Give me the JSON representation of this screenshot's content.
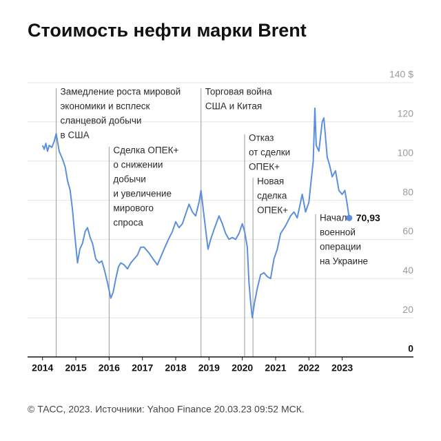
{
  "chart_data": {
    "type": "line",
    "title": "Стоимость нефти марки Brent",
    "source": "© ТАСС, 2023. Источники: Yahoo Finance 20.03.23 09:52 МСК.",
    "color": "#5b8fde",
    "xlim": [
      2013.55,
      2025.14
    ],
    "ylim": [
      0,
      140
    ],
    "xticks": [
      2014,
      2015,
      2016,
      2017,
      2018,
      2019,
      2020,
      2021,
      2022,
      2023
    ],
    "yticks": [
      0,
      20,
      40,
      60,
      80,
      100,
      120,
      {
        "value": 140,
        "label": "140 $"
      }
    ],
    "grid": true,
    "x": [
      2014.0,
      2014.05,
      2014.1,
      2014.15,
      2014.2,
      2014.28,
      2014.35,
      2014.41,
      2014.5,
      2014.6,
      2014.68,
      2014.75,
      2014.83,
      2014.9,
      2014.97,
      2015.05,
      2015.12,
      2015.2,
      2015.28,
      2015.35,
      2015.43,
      2015.5,
      2015.6,
      2015.7,
      2015.78,
      2015.85,
      2015.95,
      2016.05,
      2016.12,
      2016.2,
      2016.28,
      2016.35,
      2016.45,
      2016.55,
      2016.65,
      2016.75,
      2016.85,
      2016.95,
      2017.05,
      2017.2,
      2017.32,
      2017.45,
      2017.55,
      2017.65,
      2017.78,
      2017.9,
      2018.0,
      2018.1,
      2018.2,
      2018.3,
      2018.4,
      2018.5,
      2018.6,
      2018.7,
      2018.76,
      2018.85,
      2018.97,
      2019.05,
      2019.15,
      2019.3,
      2019.4,
      2019.5,
      2019.6,
      2019.7,
      2019.8,
      2019.9,
      2020.0,
      2020.07,
      2020.15,
      2020.2,
      2020.25,
      2020.3,
      2020.36,
      2020.45,
      2020.55,
      2020.65,
      2020.75,
      2020.85,
      2020.95,
      2021.05,
      2021.15,
      2021.3,
      2021.45,
      2021.55,
      2021.65,
      2021.8,
      2021.9,
      2022.0,
      2022.08,
      2022.13,
      2022.18,
      2022.22,
      2022.3,
      2022.4,
      2022.45,
      2022.55,
      2022.62,
      2022.7,
      2022.8,
      2022.9,
      2023.0,
      2023.08,
      2023.15,
      2023.21
    ],
    "values": [
      108,
      106,
      109,
      105,
      108,
      107,
      110,
      114,
      105,
      101,
      97,
      90,
      85,
      75,
      62,
      48,
      55,
      58,
      64,
      66,
      61,
      58,
      50,
      48,
      49,
      45,
      38,
      30,
      33,
      40,
      46,
      48,
      47,
      45,
      48,
      50,
      52,
      56,
      56,
      53,
      50,
      47,
      51,
      55,
      60,
      64,
      69,
      66,
      68,
      73,
      78,
      74,
      72,
      79,
      85,
      72,
      55,
      60,
      65,
      72,
      68,
      63,
      60,
      61,
      60,
      63,
      68,
      64,
      56,
      38,
      28,
      20,
      27,
      35,
      42,
      43,
      41,
      40,
      50,
      55,
      63,
      67,
      72,
      74,
      71,
      83,
      74,
      79,
      92,
      100,
      127,
      108,
      105,
      120,
      122,
      102,
      98,
      92,
      95,
      85,
      83,
      85,
      78,
      70.93
    ],
    "value_labels": [
      null,
      null,
      null,
      null,
      null,
      null,
      null,
      null,
      null,
      null,
      null,
      null,
      null,
      null,
      null,
      null,
      null,
      null,
      null,
      null,
      null,
      null,
      null,
      null,
      null,
      null,
      null,
      null,
      null,
      null,
      null,
      null,
      null,
      null,
      null,
      null,
      null,
      null,
      null,
      null,
      null,
      null,
      null,
      null,
      null,
      null,
      null,
      null,
      null,
      null,
      null,
      null,
      null,
      null,
      null,
      null,
      null,
      null,
      null,
      null,
      null,
      null,
      null,
      null,
      null,
      null,
      null,
      null,
      null,
      null,
      null,
      null,
      null,
      null,
      null,
      null,
      null,
      null,
      null,
      null,
      null,
      null,
      null,
      null,
      null,
      null,
      null,
      null,
      null,
      null,
      null,
      null,
      null,
      null,
      null,
      null,
      null,
      null,
      null,
      null,
      null,
      null,
      null,
      "70,93"
    ],
    "annotations": [
      {
        "x": 2014.41,
        "lines": [
          "Замедление роста мировой",
          "экономики и всплеск",
          "сланцевой добычи",
          "в США"
        ]
      },
      {
        "x": 2016.0,
        "lines": [
          "Сделка ОПЕК+",
          "о снижении",
          "добычи",
          "и увеличение",
          "мирового",
          "спроса"
        ]
      },
      {
        "x": 2018.76,
        "lines": [
          "Торговая война",
          "США и Китая"
        ]
      },
      {
        "x": 2020.07,
        "lines": [
          "Отказ",
          "от сделки",
          "ОПЕК+"
        ]
      },
      {
        "x": 2020.32,
        "lines": [
          "Новая",
          "сделка",
          "ОПЕК+"
        ]
      },
      {
        "x": 2022.2,
        "lines": [
          "Начало",
          "военной",
          "операции",
          "на Украине"
        ]
      }
    ]
  }
}
